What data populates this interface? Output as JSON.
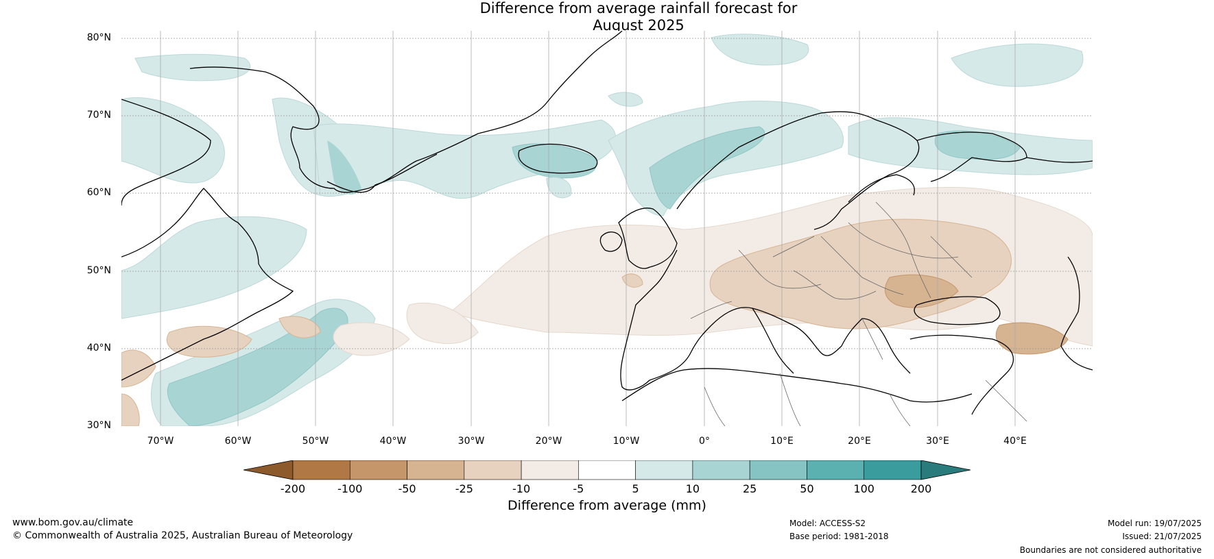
{
  "title_line1": "Difference from average rainfall forecast for",
  "title_line2": "August 2025",
  "lat_labels": [
    "80°N",
    "70°N",
    "60°N",
    "50°N",
    "40°N",
    "30°N"
  ],
  "lon_labels": [
    "70°W",
    "60°W",
    "50°W",
    "40°W",
    "30°W",
    "20°W",
    "10°W",
    "0°",
    "10°E",
    "20°E",
    "30°E",
    "40°E"
  ],
  "colorbar": {
    "title": "Difference from average (mm)",
    "ticks": [
      "-200",
      "-100",
      "-50",
      "-25",
      "-10",
      "-5",
      "5",
      "10",
      "25",
      "50",
      "100",
      "200"
    ],
    "colors": [
      "#8c5a2b",
      "#b07845",
      "#c4966a",
      "#d6b492",
      "#e7d2c0",
      "#f3ece6",
      "#ffffff",
      "#d6e9e9",
      "#a8d5d4",
      "#85c4c3",
      "#5bb0b0",
      "#3a9c9c",
      "#2a7c7c"
    ]
  },
  "footer": {
    "website": "www.bom.gov.au/climate",
    "copyright": "© Commonwealth of Australia 2025, Australian Bureau of Meteorology",
    "model": "Model: ACCESS-S2",
    "base_period": "Base period: 1981-2018",
    "model_run": "Model run: 19/07/2025",
    "issued": "Issued: 21/07/2025",
    "disclaimer": "Boundaries are not considered authoritative"
  }
}
